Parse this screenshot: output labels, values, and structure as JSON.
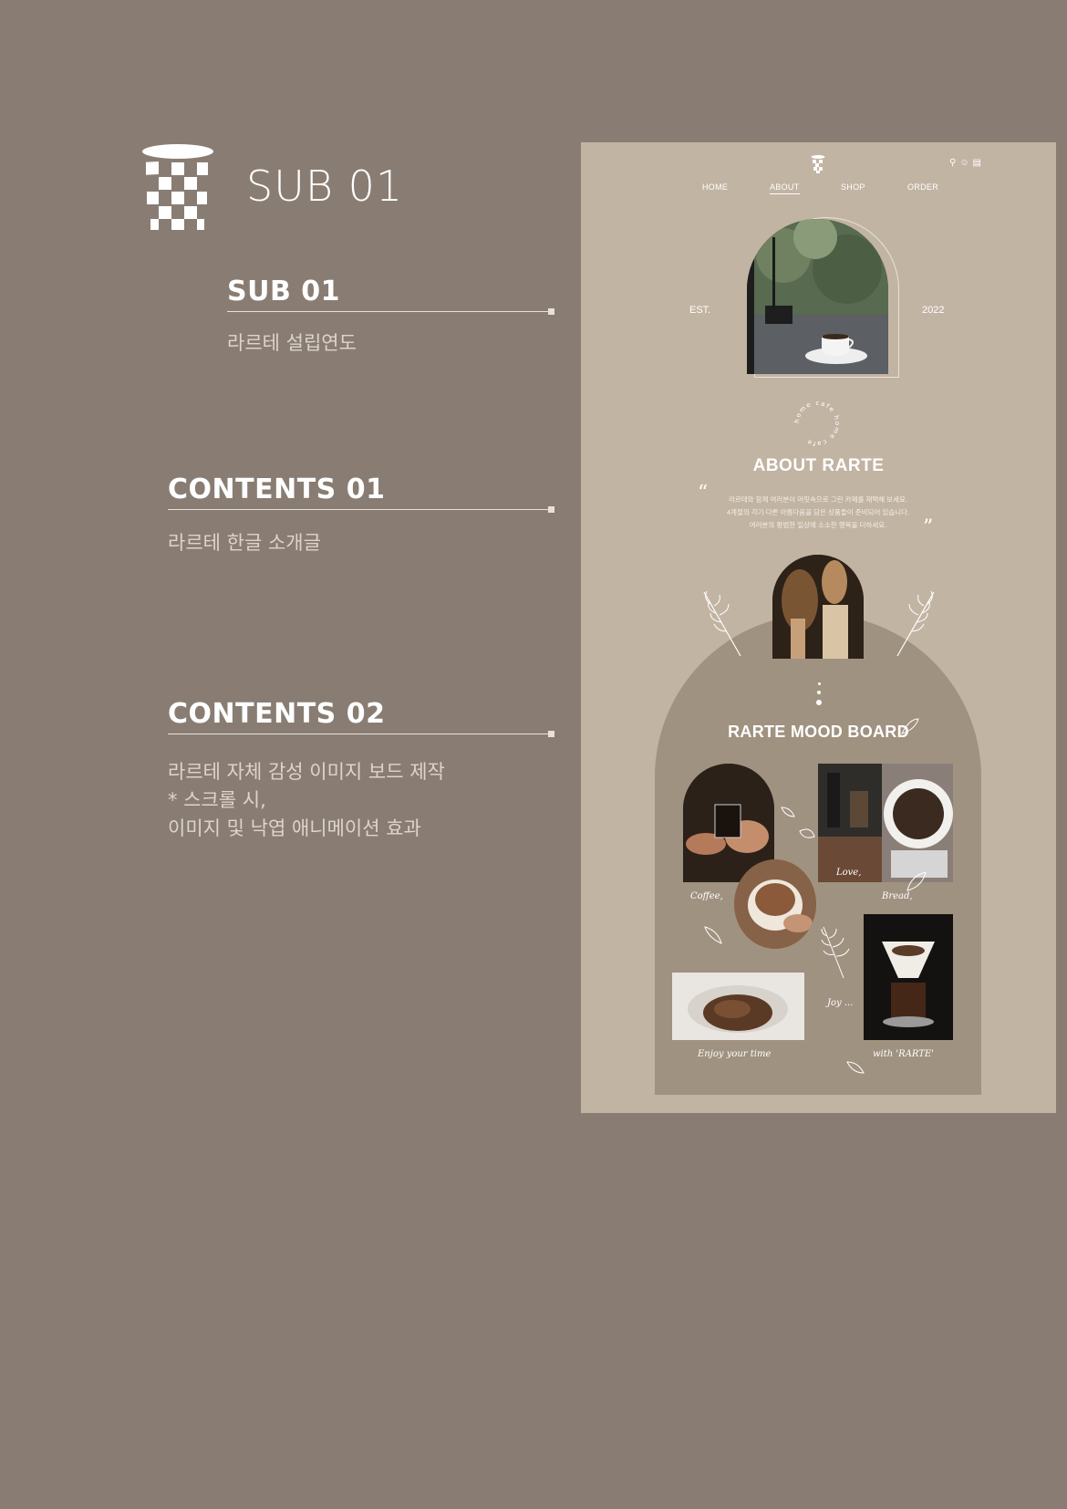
{
  "header": {
    "title": "SUB 01",
    "logo_icon": "checkered-cup-icon"
  },
  "sections": [
    {
      "title": "SUB 01",
      "desc_lines": [
        "라르테 설립연도"
      ]
    },
    {
      "title": "CONTENTS 01",
      "desc_lines": [
        "라르테 한글 소개글"
      ]
    },
    {
      "title": "CONTENTS 02",
      "desc_lines": [
        "라르테 자체 감성 이미지 보드 제작",
        "* 스크롤 시,",
        "이미지 및 낙엽 애니메이션 효과"
      ]
    }
  ],
  "mockup": {
    "nav": [
      "HOME",
      "ABOUT",
      "SHOP",
      "ORDER"
    ],
    "active_nav": "ABOUT",
    "header_icons": [
      "search-icon",
      "user-icon",
      "cart-icon"
    ],
    "est_label": "EST.",
    "est_year": "2022",
    "circle_text": "home cafe home cafe",
    "about_title": "ABOUT RARTE",
    "about_lines": [
      "라르테와 함께 여러분이 머릿속으로 그린 카페를 재택해 보세요.",
      "4계절의 각기 다른 아름다움을 담은 상품들이 준비되어 있습니다.",
      "여러분의 평범한 일상에 소소한 행복을 더하세요."
    ],
    "mood_board_title": "RARTE MOOD BOARD",
    "script_labels": {
      "coffee": "Coffee,",
      "love": "Love,",
      "bread": "Bread,",
      "joy": "Joy ...",
      "enjoy": "Enjoy your time",
      "with": "with 'RARTE'"
    }
  },
  "colors": {
    "background": "#897d73",
    "mockup_bg": "#c2b4a3",
    "board_bg": "#a09280",
    "text_light": "#ffffff",
    "desc_text": "#ddd4cb"
  }
}
